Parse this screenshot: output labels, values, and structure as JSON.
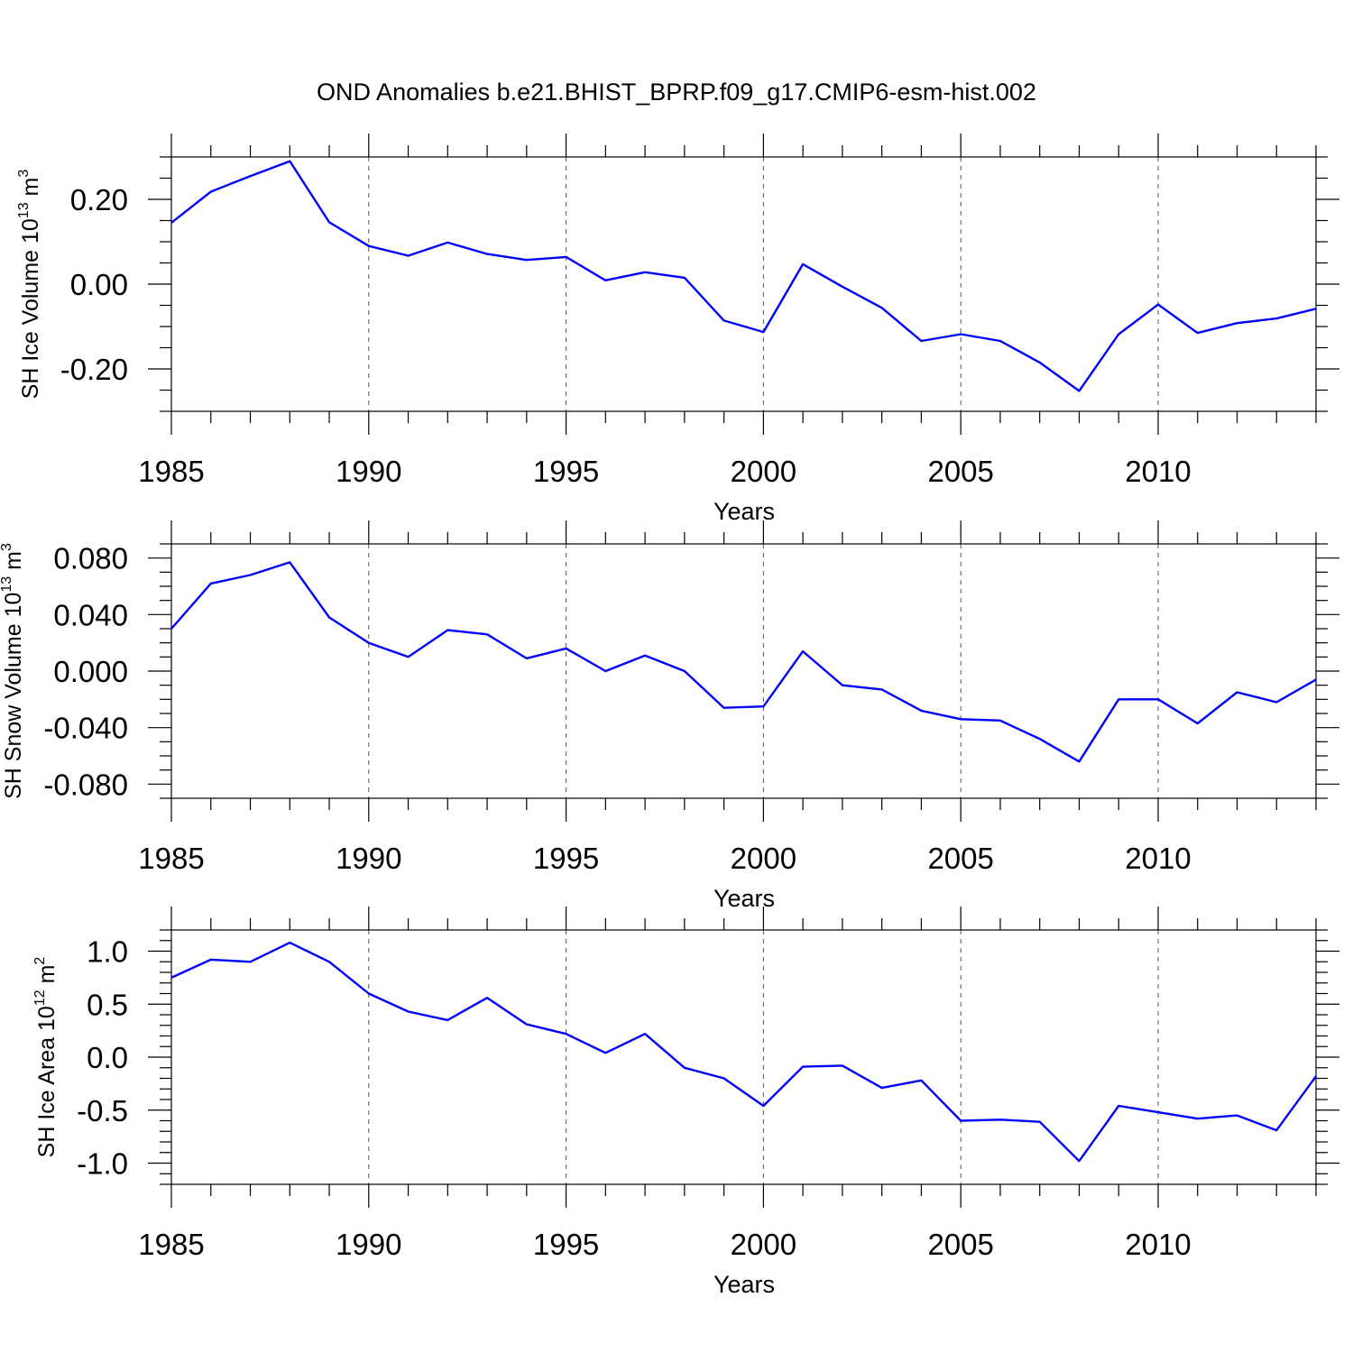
{
  "title": "OND Anomalies b.e21.BHIST_BPRP.f09_g17.CMIP6-esm-hist.002",
  "line_color": "#0000ff",
  "chart_data": [
    {
      "type": "line",
      "xlabel": "Years",
      "ylabel": {
        "main": "SH Ice Volume 10",
        "exp": "13",
        "unit": " m",
        "unit_exp": "3"
      },
      "xlim": [
        1985,
        2014
      ],
      "ylim": [
        -0.3,
        0.3
      ],
      "xticks": [
        1985,
        1990,
        1995,
        2000,
        2005,
        2010
      ],
      "xtick_labels": [
        "1985",
        "1990",
        "1995",
        "2000",
        "2005",
        "2010"
      ],
      "yticks": [
        0.2,
        0.0,
        -0.2
      ],
      "ytick_labels": [
        "0.20",
        "0.00",
        "-0.20"
      ],
      "yminor_step": 0.05,
      "grid": "vertical dashed at major x ticks",
      "x": [
        1985,
        1986,
        1987,
        1988,
        1989,
        1990,
        1991,
        1992,
        1993,
        1994,
        1995,
        1996,
        1997,
        1998,
        1999,
        2000,
        2001,
        2002,
        2003,
        2004,
        2005,
        2006,
        2007,
        2008,
        2009,
        2010,
        2011,
        2012,
        2013,
        2014
      ],
      "series": [
        {
          "values": [
            0.145,
            0.218,
            0.255,
            0.29,
            0.146,
            0.09,
            0.067,
            0.098,
            0.071,
            0.057,
            0.064,
            0.009,
            0.028,
            0.015,
            -0.086,
            -0.113,
            0.047,
            -0.006,
            -0.056,
            -0.134,
            -0.118,
            -0.134,
            -0.185,
            -0.252,
            -0.118,
            -0.048,
            -0.115,
            -0.092,
            -0.081,
            -0.058
          ]
        }
      ]
    },
    {
      "type": "line",
      "xlabel": "Years",
      "ylabel": {
        "main": "SH Snow Volume 10",
        "exp": "13",
        "unit": " m",
        "unit_exp": "3"
      },
      "xlim": [
        1985,
        2014
      ],
      "ylim": [
        -0.09,
        0.09
      ],
      "xticks": [
        1985,
        1990,
        1995,
        2000,
        2005,
        2010
      ],
      "xtick_labels": [
        "1985",
        "1990",
        "1995",
        "2000",
        "2005",
        "2010"
      ],
      "yticks": [
        0.08,
        0.04,
        0.0,
        -0.04,
        -0.08
      ],
      "ytick_labels": [
        "0.080",
        "0.040",
        "0.000",
        "-0.040",
        "-0.080"
      ],
      "yminor_step": 0.01,
      "grid": "vertical dashed at major x ticks",
      "x": [
        1985,
        1986,
        1987,
        1988,
        1989,
        1990,
        1991,
        1992,
        1993,
        1994,
        1995,
        1996,
        1997,
        1998,
        1999,
        2000,
        2001,
        2002,
        2003,
        2004,
        2005,
        2006,
        2007,
        2008,
        2009,
        2010,
        2011,
        2012,
        2013,
        2014
      ],
      "series": [
        {
          "values": [
            0.03,
            0.062,
            0.068,
            0.077,
            0.038,
            0.02,
            0.01,
            0.029,
            0.026,
            0.009,
            0.016,
            0.0,
            0.011,
            0.0,
            -0.026,
            -0.025,
            0.014,
            -0.01,
            -0.013,
            -0.028,
            -0.034,
            -0.035,
            -0.048,
            -0.064,
            -0.02,
            -0.02,
            -0.037,
            -0.015,
            -0.022,
            -0.006
          ]
        }
      ]
    },
    {
      "type": "line",
      "xlabel": "Years",
      "ylabel": {
        "main": "SH Ice Area 10",
        "exp": "12",
        "unit": " m",
        "unit_exp": "2"
      },
      "xlim": [
        1985,
        2014
      ],
      "ylim": [
        -1.2,
        1.2
      ],
      "xticks": [
        1985,
        1990,
        1995,
        2000,
        2005,
        2010
      ],
      "xtick_labels": [
        "1985",
        "1990",
        "1995",
        "2000",
        "2005",
        "2010"
      ],
      "yticks": [
        1.0,
        0.5,
        0.0,
        -0.5,
        -1.0
      ],
      "ytick_labels": [
        "1.0",
        "0.5",
        "0.0",
        "-0.5",
        "-1.0"
      ],
      "yminor_step": 0.1,
      "grid": "vertical dashed at major x ticks",
      "x": [
        1985,
        1986,
        1987,
        1988,
        1989,
        1990,
        1991,
        1992,
        1993,
        1994,
        1995,
        1996,
        1997,
        1998,
        1999,
        2000,
        2001,
        2002,
        2003,
        2004,
        2005,
        2006,
        2007,
        2008,
        2009,
        2010,
        2011,
        2012,
        2013,
        2014
      ],
      "series": [
        {
          "values": [
            0.75,
            0.92,
            0.9,
            1.08,
            0.9,
            0.6,
            0.43,
            0.35,
            0.56,
            0.31,
            0.22,
            0.04,
            0.22,
            -0.1,
            -0.2,
            -0.46,
            -0.09,
            -0.08,
            -0.29,
            -0.22,
            -0.6,
            -0.59,
            -0.61,
            -0.98,
            -0.46,
            -0.52,
            -0.58,
            -0.55,
            -0.69,
            -0.18
          ]
        }
      ]
    }
  ]
}
